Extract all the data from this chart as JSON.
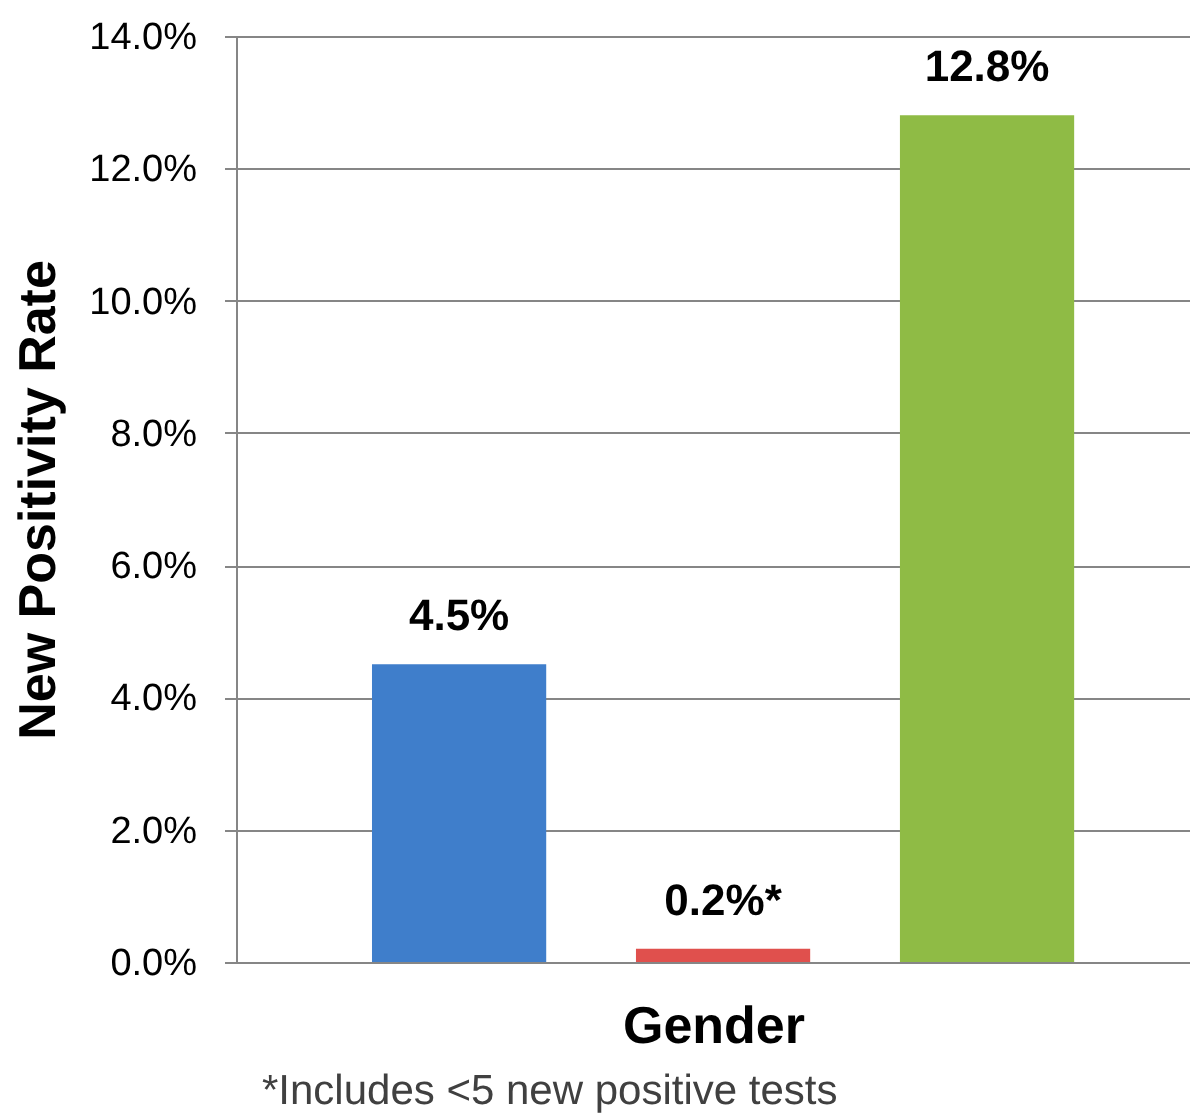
{
  "chart_data": {
    "type": "bar",
    "xlabel": "Gender",
    "ylabel": "New Positivity Rate",
    "categories": [
      null,
      null,
      null
    ],
    "values": [
      4.5,
      0.2,
      12.8
    ],
    "colors": [
      "#3f7ecb",
      "#e0504d",
      "#8fbb45"
    ],
    "value_labels": [
      "4.5%",
      "0.2%*",
      "12.8%"
    ],
    "ylim": [
      0,
      14
    ],
    "yticks": [
      {
        "value": 0,
        "label": "0.0%"
      },
      {
        "value": 2,
        "label": "2.0%"
      },
      {
        "value": 4,
        "label": "4.0%"
      },
      {
        "value": 6,
        "label": "6.0%"
      },
      {
        "value": 8,
        "label": "8.0%"
      },
      {
        "value": 10,
        "label": "10.0%"
      },
      {
        "value": 12,
        "label": "12.0%"
      },
      {
        "value": 14,
        "label": "14.0%"
      }
    ],
    "grid": "y",
    "annotations": [
      "*Includes <5 new positive tests"
    ]
  }
}
